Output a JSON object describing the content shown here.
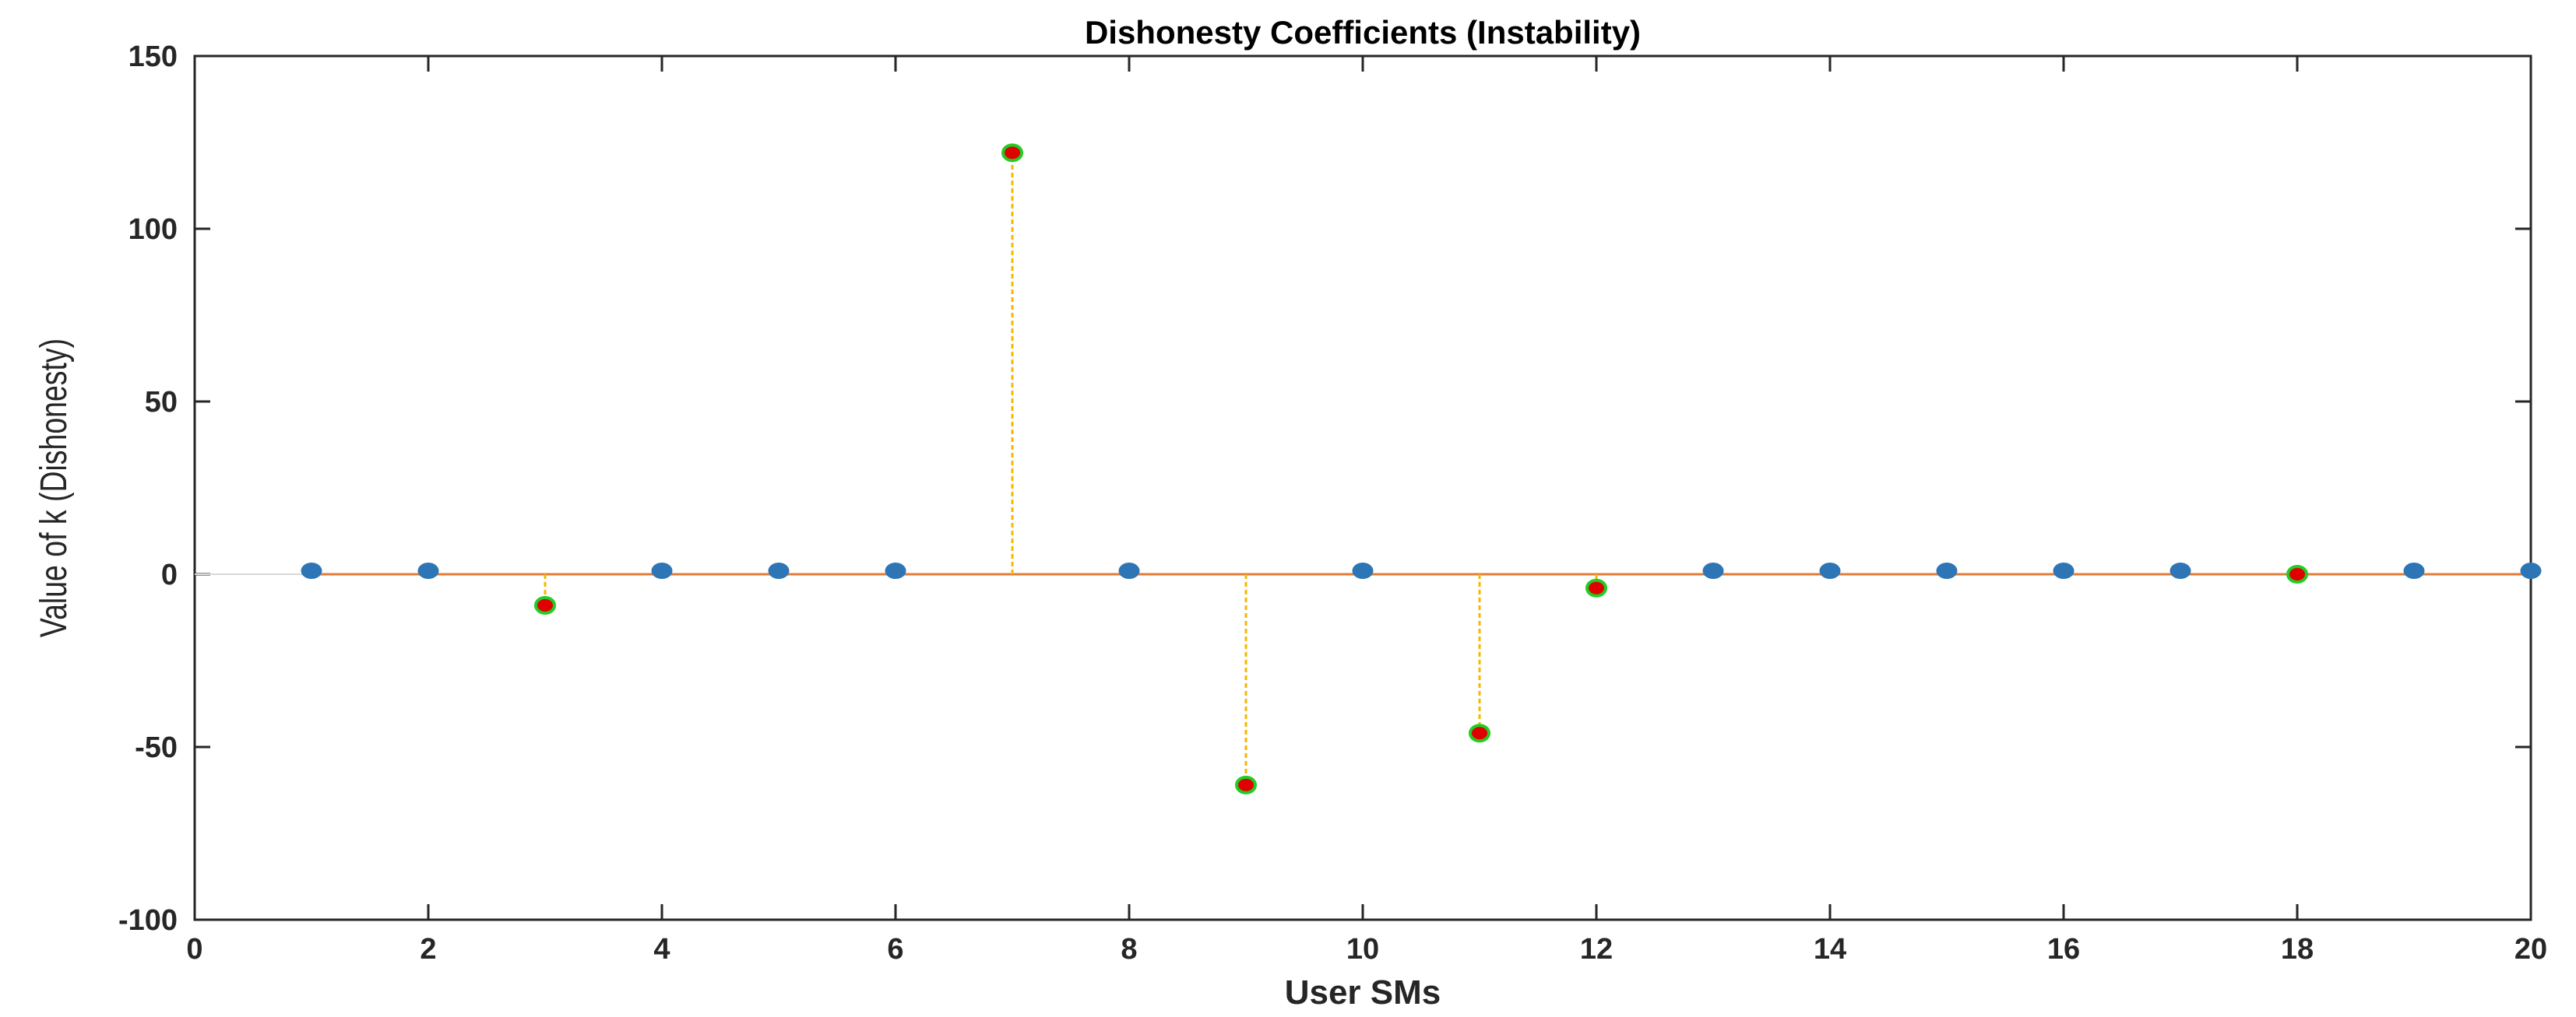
{
  "chart_data": {
    "type": "scatter",
    "title": "Dishonesty Coefficients (Instability)",
    "xlabel": "User SMs",
    "ylabel": "Value of k (Dishonesty)",
    "xlim": [
      0,
      20
    ],
    "ylim": [
      -100,
      150
    ],
    "xticks": [
      0,
      2,
      4,
      6,
      8,
      10,
      12,
      14,
      16,
      18,
      20
    ],
    "yticks": [
      -100,
      -50,
      0,
      50,
      100,
      150
    ],
    "grid": false,
    "baseline": {
      "y": 0,
      "color": "#e07b39"
    },
    "series": [
      {
        "style": "honest",
        "color": "#2e75b6",
        "x": [
          1,
          2,
          4,
          5,
          6,
          8,
          10,
          13,
          14,
          15,
          16,
          17,
          19,
          20
        ],
        "y": [
          1,
          1,
          1,
          1,
          1,
          1,
          1,
          1,
          1,
          1,
          1,
          1,
          1,
          1
        ]
      },
      {
        "style": "dishonest",
        "color": "#e00000",
        "edge_color": "#22cc22",
        "stem_color": "#f5b800",
        "x": [
          3,
          7,
          9,
          11,
          12,
          18
        ],
        "y": [
          -9,
          122,
          -61,
          -46,
          -4,
          0
        ]
      }
    ]
  }
}
